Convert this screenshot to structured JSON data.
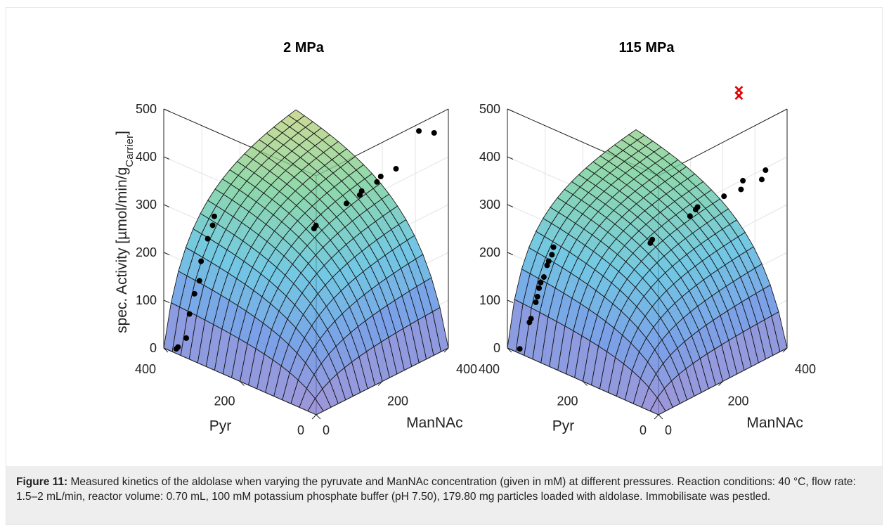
{
  "figure": {
    "caption_label": "Figure 11:",
    "caption_text": " Measured kinetics of the aldolase when varying the pyruvate and ManNAc concentration (given in mM) at different pressures. Reaction conditions: 40 °C, flow rate: 1.5–2 mL/min, reactor volume: 0.70 mL, 100 mM potassium phosphate buffer (pH 7.50), 179.80 mg particles loaded with aldolase. Immobilisate was pestled."
  },
  "chart_data": [
    {
      "type": "surface",
      "title": "2 MPa",
      "zlabel": "spec. Activity [µmol/min/g",
      "zlabel_sub": "Carrier",
      "zlabel_end": "]",
      "xlabel": "Pyr",
      "ylabel": "ManNAc",
      "zlim": [
        0,
        500
      ],
      "zticks": [
        "0",
        "100",
        "200",
        "300",
        "400",
        "500"
      ],
      "pyr_ticks": [
        "0",
        "200",
        "400"
      ],
      "mannac_ticks": [
        "0",
        "200",
        "400"
      ],
      "surface_model": {
        "vmax": 560,
        "km_pyr": 110,
        "km_mannac": 90
      },
      "points_pyr_series": [
        {
          "pyr": 20,
          "mannac": 380,
          "activity": 450
        },
        {
          "pyr": 60,
          "mannac": 380,
          "activity": 440
        },
        {
          "pyr": 120,
          "mannac": 380,
          "activity": 340
        },
        {
          "pyr": 160,
          "mannac": 380,
          "activity": 310
        },
        {
          "pyr": 170,
          "mannac": 380,
          "activity": 295
        },
        {
          "pyr": 210,
          "mannac": 380,
          "activity": 262
        },
        {
          "pyr": 215,
          "mannac": 380,
          "activity": 252
        },
        {
          "pyr": 250,
          "mannac": 380,
          "activity": 222
        },
        {
          "pyr": 330,
          "mannac": 380,
          "activity": 148
        },
        {
          "pyr": 335,
          "mannac": 380,
          "activity": 140
        }
      ],
      "points_mannac_series": [
        {
          "pyr": 380,
          "mannac": 130,
          "activity": 237
        },
        {
          "pyr": 380,
          "mannac": 125,
          "activity": 220
        },
        {
          "pyr": 380,
          "mannac": 110,
          "activity": 197
        },
        {
          "pyr": 380,
          "mannac": 90,
          "activity": 157
        },
        {
          "pyr": 380,
          "mannac": 85,
          "activity": 118
        },
        {
          "pyr": 380,
          "mannac": 70,
          "activity": 96
        },
        {
          "pyr": 380,
          "mannac": 55,
          "activity": 59
        },
        {
          "pyr": 380,
          "mannac": 45,
          "activity": 12
        },
        {
          "pyr": 380,
          "mannac": 20,
          "activity": 2
        },
        {
          "pyr": 380,
          "mannac": 15,
          "activity": 0
        }
      ],
      "outliers": []
    },
    {
      "type": "surface",
      "title": "115 MPa",
      "zlabel": "",
      "xlabel": "Pyr",
      "ylabel": "ManNAc",
      "zlim": [
        0,
        500
      ],
      "zticks": [
        "0",
        "100",
        "200",
        "300",
        "400",
        "500"
      ],
      "pyr_ticks": [
        "0",
        "200",
        "400"
      ],
      "mannac_ticks": [
        "0",
        "200",
        "400"
      ],
      "surface_model": {
        "vmax": 470,
        "km_pyr": 110,
        "km_mannac": 65
      },
      "points_pyr_series": [
        {
          "pyr": 40,
          "mannac": 380,
          "activity": 365
        },
        {
          "pyr": 50,
          "mannac": 380,
          "activity": 342
        },
        {
          "pyr": 100,
          "mannac": 380,
          "activity": 322
        },
        {
          "pyr": 105,
          "mannac": 380,
          "activity": 302
        },
        {
          "pyr": 150,
          "mannac": 380,
          "activity": 272
        },
        {
          "pyr": 220,
          "mannac": 380,
          "activity": 225
        },
        {
          "pyr": 225,
          "mannac": 380,
          "activity": 218
        },
        {
          "pyr": 240,
          "mannac": 380,
          "activity": 199
        },
        {
          "pyr": 340,
          "mannac": 380,
          "activity": 115
        },
        {
          "pyr": 345,
          "mannac": 380,
          "activity": 106
        }
      ],
      "points_mannac_series": [
        {
          "pyr": 380,
          "mannac": 120,
          "activity": 176
        },
        {
          "pyr": 380,
          "mannac": 115,
          "activity": 162
        },
        {
          "pyr": 380,
          "mannac": 105,
          "activity": 152
        },
        {
          "pyr": 380,
          "mannac": 100,
          "activity": 145
        },
        {
          "pyr": 380,
          "mannac": 90,
          "activity": 124
        },
        {
          "pyr": 380,
          "mannac": 80,
          "activity": 116
        },
        {
          "pyr": 380,
          "mannac": 75,
          "activity": 106
        },
        {
          "pyr": 380,
          "mannac": 70,
          "activity": 90
        },
        {
          "pyr": 380,
          "mannac": 65,
          "activity": 80
        },
        {
          "pyr": 380,
          "mannac": 50,
          "activity": 51
        },
        {
          "pyr": 380,
          "mannac": 45,
          "activity": 45
        },
        {
          "pyr": 380,
          "mannac": 15,
          "activity": 0
        }
      ],
      "outliers": [
        {
          "pyr": 0,
          "mannac": 250,
          "activity": 592
        },
        {
          "pyr": 0,
          "mannac": 250,
          "activity": 580
        }
      ]
    }
  ]
}
